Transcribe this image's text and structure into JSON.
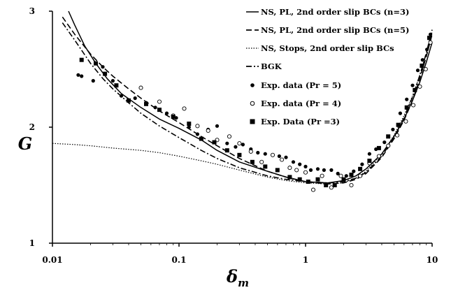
{
  "chart_data": {
    "type": "scatter",
    "xscale": "log",
    "xlim": [
      0.01,
      10
    ],
    "ylim": [
      1,
      3
    ],
    "grid": false,
    "legend_position": "top-right",
    "xlabel_main": "δ",
    "xlabel_sub": "m",
    "ylabel": "G",
    "xticks": [
      {
        "value": 0.01,
        "label": "0.01"
      },
      {
        "value": 0.1,
        "label": "0.1"
      },
      {
        "value": 1,
        "label": "1"
      },
      {
        "value": 10,
        "label": "10"
      }
    ],
    "yticks": [
      {
        "value": 1,
        "label": "1"
      },
      {
        "value": 2,
        "label": "2"
      },
      {
        "value": 3,
        "label": "3"
      }
    ],
    "lines": [
      {
        "name": "NS, PL, 2nd order slip BCs (n=3)",
        "style": "solid",
        "x": [
          0.0134,
          0.015,
          0.018,
          0.022,
          0.027,
          0.035,
          0.05,
          0.07,
          0.1,
          0.15,
          0.2,
          0.3,
          0.5,
          0.7,
          1.0,
          1.5,
          2.0,
          2.5,
          3.0,
          4.0,
          5.0,
          6.0,
          7.0,
          8.0,
          9.0,
          10.0
        ],
        "y": [
          3.0,
          2.88,
          2.7,
          2.55,
          2.42,
          2.29,
          2.17,
          2.07,
          1.99,
          1.89,
          1.8,
          1.7,
          1.62,
          1.57,
          1.53,
          1.52,
          1.54,
          1.58,
          1.64,
          1.77,
          1.92,
          2.07,
          2.23,
          2.39,
          2.56,
          2.73
        ]
      },
      {
        "name": "NS, PL, 2nd order slip BCs (n=5)",
        "style": "dash",
        "x": [
          0.012,
          0.015,
          0.02,
          0.025,
          0.03,
          0.04,
          0.05,
          0.07,
          0.1,
          0.15,
          0.2,
          0.3,
          0.5,
          0.7,
          1.0,
          1.5,
          2.0,
          2.5,
          3.0,
          4.0,
          5.0,
          6.0,
          7.0,
          8.0,
          9.0,
          10.0
        ],
        "y": [
          2.95,
          2.8,
          2.63,
          2.52,
          2.44,
          2.33,
          2.25,
          2.14,
          2.04,
          1.92,
          1.84,
          1.73,
          1.62,
          1.57,
          1.53,
          1.51,
          1.52,
          1.55,
          1.6,
          1.74,
          1.9,
          2.06,
          2.23,
          2.42,
          2.61,
          2.8
        ]
      },
      {
        "name": "NS, Stops, 2nd order slip BCs",
        "style": "dot",
        "x": [
          0.01,
          0.015,
          0.02,
          0.03,
          0.05,
          0.07,
          0.1,
          0.15,
          0.2,
          0.3,
          0.5,
          0.7,
          1.0,
          1.5,
          2.0,
          2.5,
          3.0,
          4.0,
          5.0,
          6.0,
          7.0,
          8.0,
          9.0,
          10.0
        ],
        "y": [
          1.86,
          1.85,
          1.84,
          1.82,
          1.8,
          1.78,
          1.75,
          1.71,
          1.68,
          1.63,
          1.57,
          1.54,
          1.52,
          1.51,
          1.52,
          1.56,
          1.62,
          1.77,
          1.93,
          2.1,
          2.27,
          2.45,
          2.63,
          2.82
        ]
      },
      {
        "name": "BGK",
        "style": "dashdot",
        "x": [
          0.012,
          0.015,
          0.02,
          0.025,
          0.03,
          0.04,
          0.05,
          0.07,
          0.1,
          0.15,
          0.2,
          0.3,
          0.5,
          0.7,
          1.0,
          1.5,
          2.0,
          2.5,
          3.0,
          4.0,
          5.0,
          6.0,
          7.0,
          8.0,
          9.0,
          10.0
        ],
        "y": [
          2.9,
          2.75,
          2.55,
          2.42,
          2.33,
          2.21,
          2.12,
          2.01,
          1.91,
          1.8,
          1.73,
          1.65,
          1.58,
          1.55,
          1.53,
          1.52,
          1.53,
          1.56,
          1.61,
          1.75,
          1.91,
          2.08,
          2.26,
          2.45,
          2.64,
          2.84
        ]
      }
    ],
    "scatter": [
      {
        "name": "Exp. data (Pr = 5)",
        "marker": "filled-circle",
        "points": [
          [
            0.016,
            2.45
          ],
          [
            0.017,
            2.44
          ],
          [
            0.021,
            2.4
          ],
          [
            0.025,
            2.52
          ],
          [
            0.03,
            2.4
          ],
          [
            0.035,
            2.27
          ],
          [
            0.045,
            2.25
          ],
          [
            0.055,
            2.21
          ],
          [
            0.065,
            2.17
          ],
          [
            0.08,
            2.12
          ],
          [
            0.095,
            2.08
          ],
          [
            0.12,
            2.0
          ],
          [
            0.14,
            1.94
          ],
          [
            0.17,
            1.98
          ],
          [
            0.2,
            2.01
          ],
          [
            0.24,
            1.86
          ],
          [
            0.28,
            1.83
          ],
          [
            0.32,
            1.85
          ],
          [
            0.37,
            1.81
          ],
          [
            0.42,
            1.78
          ],
          [
            0.48,
            1.77
          ],
          [
            0.55,
            1.76
          ],
          [
            0.62,
            1.75
          ],
          [
            0.7,
            1.74
          ],
          [
            0.8,
            1.7
          ],
          [
            0.9,
            1.68
          ],
          [
            1.0,
            1.66
          ],
          [
            1.1,
            1.63
          ],
          [
            1.25,
            1.64
          ],
          [
            1.4,
            1.63
          ],
          [
            1.6,
            1.63
          ],
          [
            1.8,
            1.6
          ],
          [
            2.1,
            1.58
          ],
          [
            2.4,
            1.62
          ],
          [
            2.8,
            1.68
          ],
          [
            3.2,
            1.77
          ],
          [
            3.6,
            1.81
          ],
          [
            4.2,
            1.87
          ],
          [
            4.9,
            1.98
          ],
          [
            5.6,
            2.12
          ],
          [
            6.3,
            2.24
          ],
          [
            7.0,
            2.36
          ],
          [
            7.7,
            2.49
          ],
          [
            8.4,
            2.58
          ],
          [
            9.1,
            2.67
          ],
          [
            9.7,
            2.8
          ]
        ]
      },
      {
        "name": "Exp. data (Pr = 4)",
        "marker": "open-circle",
        "points": [
          [
            0.05,
            2.34
          ],
          [
            0.07,
            2.22
          ],
          [
            0.09,
            2.1
          ],
          [
            0.11,
            2.16
          ],
          [
            0.14,
            2.01
          ],
          [
            0.17,
            1.97
          ],
          [
            0.2,
            1.89
          ],
          [
            0.25,
            1.92
          ],
          [
            0.3,
            1.86
          ],
          [
            0.37,
            1.79
          ],
          [
            0.45,
            1.7
          ],
          [
            0.55,
            1.76
          ],
          [
            0.65,
            1.72
          ],
          [
            0.75,
            1.65
          ],
          [
            0.85,
            1.63
          ],
          [
            1.0,
            1.61
          ],
          [
            1.15,
            1.46
          ],
          [
            1.35,
            1.58
          ],
          [
            1.6,
            1.48
          ],
          [
            1.9,
            1.58
          ],
          [
            2.3,
            1.5
          ],
          [
            2.7,
            1.58
          ],
          [
            3.2,
            1.69
          ],
          [
            3.8,
            1.75
          ],
          [
            4.5,
            1.84
          ],
          [
            5.3,
            1.93
          ],
          [
            6.2,
            2.05
          ],
          [
            7.1,
            2.19
          ],
          [
            8.0,
            2.35
          ],
          [
            8.9,
            2.5
          ],
          [
            9.7,
            2.73
          ]
        ]
      },
      {
        "name": "Exp. Data (Pr =3)",
        "marker": "filled-square",
        "points": [
          [
            0.017,
            2.58
          ],
          [
            0.022,
            2.55
          ],
          [
            0.026,
            2.46
          ],
          [
            0.032,
            2.36
          ],
          [
            0.04,
            2.23
          ],
          [
            0.055,
            2.2
          ],
          [
            0.07,
            2.15
          ],
          [
            0.09,
            2.09
          ],
          [
            0.12,
            2.03
          ],
          [
            0.15,
            1.9
          ],
          [
            0.19,
            1.87
          ],
          [
            0.24,
            1.8
          ],
          [
            0.3,
            1.76
          ],
          [
            0.38,
            1.7
          ],
          [
            0.48,
            1.66
          ],
          [
            0.6,
            1.63
          ],
          [
            0.75,
            1.57
          ],
          [
            0.9,
            1.55
          ],
          [
            1.05,
            1.53
          ],
          [
            1.25,
            1.55
          ],
          [
            1.45,
            1.5
          ],
          [
            1.7,
            1.5
          ],
          [
            2.0,
            1.55
          ],
          [
            2.3,
            1.59
          ],
          [
            2.7,
            1.64
          ],
          [
            3.2,
            1.71
          ],
          [
            3.8,
            1.82
          ],
          [
            4.5,
            1.92
          ],
          [
            5.4,
            2.02
          ],
          [
            6.3,
            2.17
          ],
          [
            7.3,
            2.32
          ],
          [
            8.3,
            2.53
          ],
          [
            9.5,
            2.77
          ]
        ]
      }
    ]
  }
}
